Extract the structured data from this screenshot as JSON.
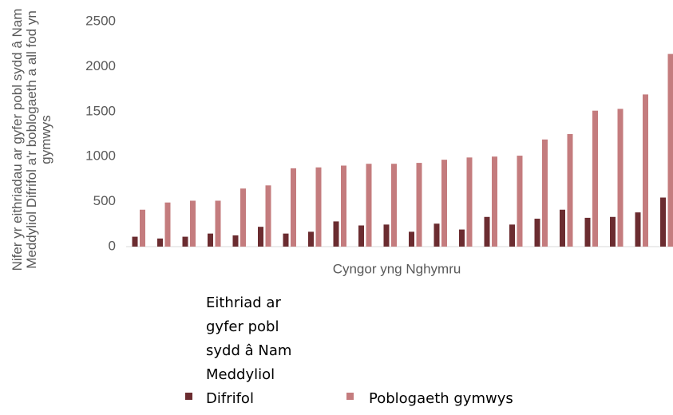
{
  "chart_data": {
    "type": "bar",
    "ylabel": "Nifer yr eithriadau ar gyfer pobl sydd â Nam Meddyliol Difrifol a'r boblogaeth a all fod yn gymwys",
    "xlabel": "Cyngor yng Nghymru",
    "categories": [
      null,
      null,
      null,
      null,
      null,
      null,
      null,
      null,
      null,
      null,
      null,
      null,
      null,
      null,
      null,
      null,
      null,
      null,
      null,
      null,
      null,
      null
    ],
    "series": [
      {
        "name": "Eithriad ar gyfer pobl sydd â Nam Meddyliol Difrifol",
        "color": "#6b2c30",
        "values": [
          110,
          90,
          110,
          145,
          125,
          220,
          145,
          165,
          280,
          235,
          245,
          165,
          255,
          190,
          330,
          245,
          310,
          410,
          320,
          330,
          380,
          545
        ]
      },
      {
        "name": "Poblogaeth gymwys",
        "color": "#c47c7e",
        "values": [
          410,
          490,
          510,
          510,
          645,
          680,
          870,
          880,
          900,
          920,
          920,
          930,
          965,
          990,
          1000,
          1010,
          1190,
          1250,
          1510,
          1530,
          1690,
          2140
        ]
      }
    ],
    "ylim": [
      0,
      2500
    ],
    "yticks": [
      0,
      500,
      1000,
      1500,
      2000,
      2500
    ],
    "grid": false
  }
}
